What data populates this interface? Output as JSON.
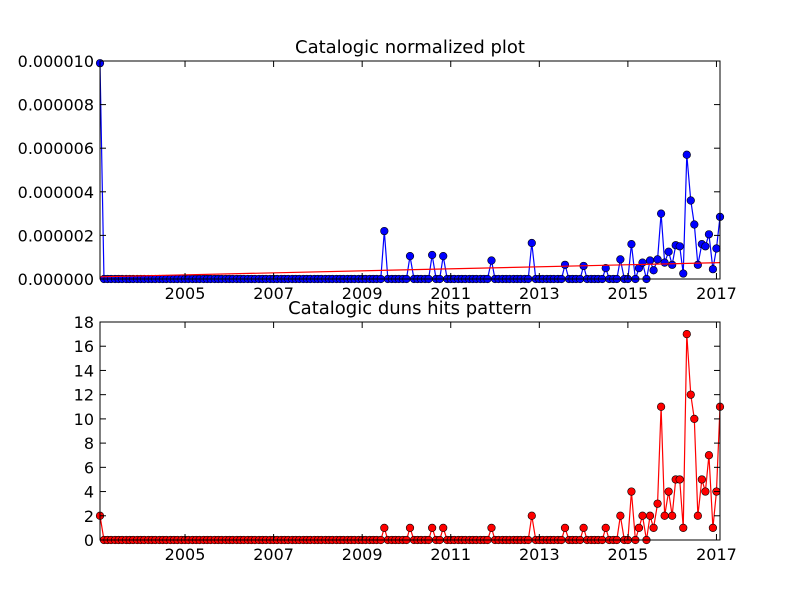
{
  "chart_data": [
    {
      "type": "line",
      "title": "Catalogic normalized plot",
      "x": [
        2003.08,
        2003.17,
        2003.25,
        2003.33,
        2003.42,
        2003.5,
        2003.58,
        2003.67,
        2003.75,
        2003.83,
        2003.92,
        2004,
        2004.08,
        2004.17,
        2004.25,
        2004.33,
        2004.42,
        2004.5,
        2004.58,
        2004.67,
        2004.75,
        2004.83,
        2004.92,
        2005,
        2005.08,
        2005.17,
        2005.25,
        2005.33,
        2005.42,
        2005.5,
        2005.58,
        2005.67,
        2005.75,
        2005.83,
        2005.92,
        2006,
        2006.08,
        2006.17,
        2006.25,
        2006.33,
        2006.42,
        2006.5,
        2006.58,
        2006.67,
        2006.75,
        2006.83,
        2006.92,
        2007,
        2007.08,
        2007.17,
        2007.25,
        2007.33,
        2007.42,
        2007.5,
        2007.58,
        2007.67,
        2007.75,
        2007.83,
        2007.92,
        2008,
        2008.08,
        2008.17,
        2008.25,
        2008.33,
        2008.42,
        2008.5,
        2008.58,
        2008.67,
        2008.75,
        2008.83,
        2008.92,
        2009,
        2009.08,
        2009.17,
        2009.25,
        2009.33,
        2009.42,
        2009.5,
        2009.58,
        2009.67,
        2009.75,
        2009.83,
        2009.92,
        2010,
        2010.08,
        2010.17,
        2010.25,
        2010.33,
        2010.42,
        2010.5,
        2010.58,
        2010.67,
        2010.75,
        2010.83,
        2010.92,
        2011,
        2011.08,
        2011.17,
        2011.25,
        2011.33,
        2011.42,
        2011.5,
        2011.58,
        2011.67,
        2011.75,
        2011.83,
        2011.92,
        2012,
        2012.08,
        2012.17,
        2012.25,
        2012.33,
        2012.42,
        2012.5,
        2012.58,
        2012.67,
        2012.75,
        2012.83,
        2012.92,
        2013,
        2013.08,
        2013.17,
        2013.25,
        2013.33,
        2013.42,
        2013.5,
        2013.58,
        2013.67,
        2013.75,
        2013.83,
        2013.92,
        2014,
        2014.08,
        2014.17,
        2014.25,
        2014.33,
        2014.42,
        2014.5,
        2014.58,
        2014.67,
        2014.75,
        2014.83,
        2014.92,
        2015,
        2015.08,
        2015.17,
        2015.25,
        2015.33,
        2015.42,
        2015.5,
        2015.58,
        2015.67,
        2015.75,
        2015.83,
        2015.92,
        2016,
        2016.08,
        2016.17,
        2016.25,
        2016.33,
        2016.42,
        2016.5,
        2016.58,
        2016.67,
        2016.75,
        2016.83,
        2016.92,
        2017,
        2017.08
      ],
      "series": [
        {
          "color": "#0000ff",
          "marker": true,
          "values": [
            9.9e-06,
            0,
            0,
            0,
            0,
            0,
            0,
            0,
            0,
            0,
            0,
            0,
            0,
            0,
            0,
            0,
            0,
            0,
            0,
            0,
            0,
            0,
            0,
            0,
            0,
            0,
            0,
            0,
            0,
            0,
            0,
            0,
            0,
            0,
            0,
            0,
            0,
            0,
            0,
            0,
            0,
            0,
            0,
            0,
            0,
            0,
            0,
            0,
            0,
            0,
            0,
            0,
            0,
            0,
            0,
            0,
            0,
            0,
            0,
            0,
            0,
            0,
            0,
            0,
            0,
            0,
            0,
            0,
            0,
            0,
            0,
            0,
            0,
            0,
            0,
            0,
            0,
            2.2e-06,
            0,
            0,
            0,
            0,
            0,
            0,
            1.05e-06,
            0,
            0,
            0,
            0,
            0,
            1.1e-06,
            0,
            0,
            1.05e-06,
            0,
            0,
            0,
            0,
            0,
            0,
            0,
            0,
            0,
            0,
            0,
            0,
            8.5e-07,
            0,
            0,
            0,
            0,
            0,
            0,
            0,
            0,
            0,
            0,
            1.65e-06,
            0,
            0,
            0,
            0,
            0,
            0,
            0,
            0,
            6.5e-07,
            0,
            0,
            0,
            0,
            6e-07,
            0,
            0,
            0,
            0,
            0,
            5e-07,
            0,
            0,
            0,
            9e-07,
            0,
            0,
            1.6e-06,
            0,
            5e-07,
            7.5e-07,
            0,
            8.5e-07,
            4e-07,
            9e-07,
            3e-06,
            7.5e-07,
            1.25e-06,
            6.5e-07,
            1.55e-06,
            1.5e-06,
            2.5e-07,
            5.7e-06,
            3.6e-06,
            2.5e-06,
            6.5e-07,
            1.6e-06,
            1.5e-06,
            2.05e-06,
            4.5e-07,
            1.4e-06,
            2.85e-06
          ]
        },
        {
          "color": "#ff0000",
          "marker": false,
          "x": [
            2003.08,
            2017.08
          ],
          "values": [
            1e-07,
            7.5e-07
          ]
        }
      ],
      "xlim": [
        2003.08,
        2017.08
      ],
      "xticks": [
        2005,
        2007,
        2009,
        2011,
        2013,
        2015,
        2017
      ],
      "ylim": [
        0,
        1e-05
      ],
      "yticks": [
        {
          "value": 0,
          "label": "0.000000"
        },
        {
          "value": 2e-06,
          "label": "0.000002"
        },
        {
          "value": 4e-06,
          "label": "0.000004"
        },
        {
          "value": 6e-06,
          "label": "0.000006"
        },
        {
          "value": 8e-06,
          "label": "0.000008"
        },
        {
          "value": 1e-05,
          "label": "0.000010"
        }
      ]
    },
    {
      "type": "line",
      "title": "Catalogic duns hits pattern",
      "x": [
        2003.08,
        2003.17,
        2003.25,
        2003.33,
        2003.42,
        2003.5,
        2003.58,
        2003.67,
        2003.75,
        2003.83,
        2003.92,
        2004,
        2004.08,
        2004.17,
        2004.25,
        2004.33,
        2004.42,
        2004.5,
        2004.58,
        2004.67,
        2004.75,
        2004.83,
        2004.92,
        2005,
        2005.08,
        2005.17,
        2005.25,
        2005.33,
        2005.42,
        2005.5,
        2005.58,
        2005.67,
        2005.75,
        2005.83,
        2005.92,
        2006,
        2006.08,
        2006.17,
        2006.25,
        2006.33,
        2006.42,
        2006.5,
        2006.58,
        2006.67,
        2006.75,
        2006.83,
        2006.92,
        2007,
        2007.08,
        2007.17,
        2007.25,
        2007.33,
        2007.42,
        2007.5,
        2007.58,
        2007.67,
        2007.75,
        2007.83,
        2007.92,
        2008,
        2008.08,
        2008.17,
        2008.25,
        2008.33,
        2008.42,
        2008.5,
        2008.58,
        2008.67,
        2008.75,
        2008.83,
        2008.92,
        2009,
        2009.08,
        2009.17,
        2009.25,
        2009.33,
        2009.42,
        2009.5,
        2009.58,
        2009.67,
        2009.75,
        2009.83,
        2009.92,
        2010,
        2010.08,
        2010.17,
        2010.25,
        2010.33,
        2010.42,
        2010.5,
        2010.58,
        2010.67,
        2010.75,
        2010.83,
        2010.92,
        2011,
        2011.08,
        2011.17,
        2011.25,
        2011.33,
        2011.42,
        2011.5,
        2011.58,
        2011.67,
        2011.75,
        2011.83,
        2011.92,
        2012,
        2012.08,
        2012.17,
        2012.25,
        2012.33,
        2012.42,
        2012.5,
        2012.58,
        2012.67,
        2012.75,
        2012.83,
        2012.92,
        2013,
        2013.08,
        2013.17,
        2013.25,
        2013.33,
        2013.42,
        2013.5,
        2013.58,
        2013.67,
        2013.75,
        2013.83,
        2013.92,
        2014,
        2014.08,
        2014.17,
        2014.25,
        2014.33,
        2014.42,
        2014.5,
        2014.58,
        2014.67,
        2014.75,
        2014.83,
        2014.92,
        2015,
        2015.08,
        2015.17,
        2015.25,
        2015.33,
        2015.42,
        2015.5,
        2015.58,
        2015.67,
        2015.75,
        2015.83,
        2015.92,
        2016,
        2016.08,
        2016.17,
        2016.25,
        2016.33,
        2016.42,
        2016.5,
        2016.58,
        2016.67,
        2016.75,
        2016.83,
        2016.92,
        2017,
        2017.08
      ],
      "series": [
        {
          "color": "#ff0000",
          "marker": true,
          "values": [
            2,
            0,
            0,
            0,
            0,
            0,
            0,
            0,
            0,
            0,
            0,
            0,
            0,
            0,
            0,
            0,
            0,
            0,
            0,
            0,
            0,
            0,
            0,
            0,
            0,
            0,
            0,
            0,
            0,
            0,
            0,
            0,
            0,
            0,
            0,
            0,
            0,
            0,
            0,
            0,
            0,
            0,
            0,
            0,
            0,
            0,
            0,
            0,
            0,
            0,
            0,
            0,
            0,
            0,
            0,
            0,
            0,
            0,
            0,
            0,
            0,
            0,
            0,
            0,
            0,
            0,
            0,
            0,
            0,
            0,
            0,
            0,
            0,
            0,
            0,
            0,
            0,
            1,
            0,
            0,
            0,
            0,
            0,
            0,
            1,
            0,
            0,
            0,
            0,
            0,
            1,
            0,
            0,
            1,
            0,
            0,
            0,
            0,
            0,
            0,
            0,
            0,
            0,
            0,
            0,
            0,
            1,
            0,
            0,
            0,
            0,
            0,
            0,
            0,
            0,
            0,
            0,
            2,
            0,
            0,
            0,
            0,
            0,
            0,
            0,
            0,
            1,
            0,
            0,
            0,
            0,
            1,
            0,
            0,
            0,
            0,
            0,
            1,
            0,
            0,
            0,
            2,
            0,
            0,
            4,
            0,
            1,
            2,
            0,
            2,
            1,
            3,
            11,
            2,
            4,
            2,
            5,
            5,
            1,
            17,
            12,
            10,
            2,
            5,
            4,
            7,
            1,
            4,
            11
          ]
        }
      ],
      "xlim": [
        2003.08,
        2017.08
      ],
      "xticks": [
        2005,
        2007,
        2009,
        2011,
        2013,
        2015,
        2017
      ],
      "ylim": [
        0,
        18
      ],
      "yticks": [
        0,
        2,
        4,
        6,
        8,
        10,
        12,
        14,
        16,
        18
      ]
    }
  ]
}
